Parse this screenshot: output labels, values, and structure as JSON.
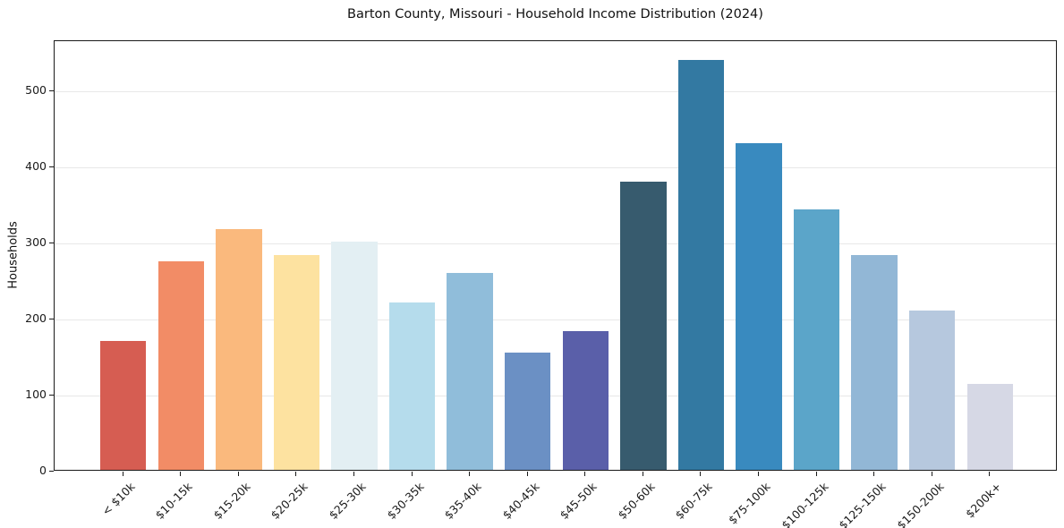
{
  "figure": {
    "title": "Barton County, Missouri - Household Income Distribution (2024)",
    "y_axis_title": "Households"
  },
  "chart_data": {
    "type": "bar",
    "title": "Barton County, Missouri - Household Income Distribution (2024)",
    "xlabel": "",
    "ylabel": "Households",
    "categories": [
      "< $10k",
      "$10-15k",
      "$15-20k",
      "$20-25k",
      "$25-30k",
      "$30-35k",
      "$35-40k",
      "$40-45k",
      "$45-50k",
      "$50-60k",
      "$60-75k",
      "$75-100k",
      "$100-125k",
      "$125-150k",
      "$150-200k",
      "$200k+"
    ],
    "values": [
      170,
      274,
      317,
      282,
      300,
      220,
      259,
      154,
      183,
      379,
      539,
      429,
      343,
      282,
      210,
      113
    ],
    "bar_colors": [
      "#d65d52",
      "#f28c66",
      "#fab97d",
      "#fde2a0",
      "#e3eff3",
      "#b5dcec",
      "#90bdda",
      "#6b90c4",
      "#5a5fa9",
      "#375b6e",
      "#3379a2",
      "#398abf",
      "#5ba5c9",
      "#92b7d6",
      "#b6c8de",
      "#d6d8e5"
    ],
    "yticks": [
      0,
      100,
      200,
      300,
      400,
      500
    ],
    "ylim": [
      0,
      566
    ],
    "grid": "horizontal-only",
    "legend": "none",
    "x_tick_rotation": 45
  }
}
